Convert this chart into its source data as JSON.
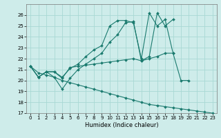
{
  "xlabel": "Humidex (Indice chaleur)",
  "xlim": [
    -0.5,
    23.5
  ],
  "ylim": [
    17,
    27
  ],
  "yticks": [
    17,
    18,
    19,
    20,
    21,
    22,
    23,
    24,
    25,
    26
  ],
  "xticks": [
    0,
    1,
    2,
    3,
    4,
    5,
    6,
    7,
    8,
    9,
    10,
    11,
    12,
    13,
    14,
    15,
    16,
    17,
    18,
    19,
    20,
    21,
    22,
    23
  ],
  "bg_color": "#ceecea",
  "grid_color": "#a8d8d4",
  "line_color": "#1a7a6e",
  "lines": [
    {
      "x": [
        0,
        1,
        2,
        3,
        4,
        5,
        6,
        7,
        8,
        9,
        10,
        11,
        12,
        13,
        14,
        15,
        16,
        17,
        18
      ],
      "y": [
        21.3,
        20.3,
        20.8,
        20.8,
        20.3,
        21.1,
        21.5,
        22.2,
        22.8,
        23.2,
        25.0,
        25.5,
        25.5,
        25.3,
        22.0,
        26.2,
        25.0,
        25.6,
        22.5
      ]
    },
    {
      "x": [
        0,
        1,
        2,
        3,
        4,
        5,
        6,
        7,
        8,
        9,
        10,
        11,
        12,
        13,
        14,
        15,
        16,
        17,
        18,
        19,
        20
      ],
      "y": [
        21.3,
        20.3,
        20.8,
        20.8,
        20.2,
        21.2,
        21.3,
        21.4,
        21.5,
        21.6,
        21.7,
        21.8,
        21.9,
        22.0,
        21.8,
        22.0,
        22.2,
        22.5,
        22.5,
        20.0,
        20.0
      ]
    },
    {
      "x": [
        0,
        1,
        2,
        3,
        4,
        5,
        6,
        7,
        8,
        9,
        10,
        11,
        12,
        13,
        14,
        15,
        16,
        17,
        18
      ],
      "y": [
        21.3,
        20.3,
        20.8,
        20.3,
        19.2,
        20.2,
        21.0,
        21.5,
        22.0,
        22.5,
        23.5,
        24.2,
        25.3,
        25.4,
        21.8,
        22.2,
        26.2,
        25.0,
        25.6
      ]
    },
    {
      "x": [
        0,
        1,
        2,
        3,
        4,
        5,
        6,
        7,
        8,
        9,
        10,
        11,
        12,
        13,
        14,
        15,
        16,
        17,
        18,
        19,
        20,
        21,
        22,
        23
      ],
      "y": [
        21.3,
        20.7,
        20.5,
        20.3,
        20.0,
        19.8,
        19.6,
        19.4,
        19.2,
        19.0,
        18.8,
        18.6,
        18.4,
        18.2,
        18.0,
        17.8,
        17.7,
        17.6,
        17.5,
        17.4,
        17.3,
        17.2,
        17.1,
        17.0
      ]
    }
  ]
}
